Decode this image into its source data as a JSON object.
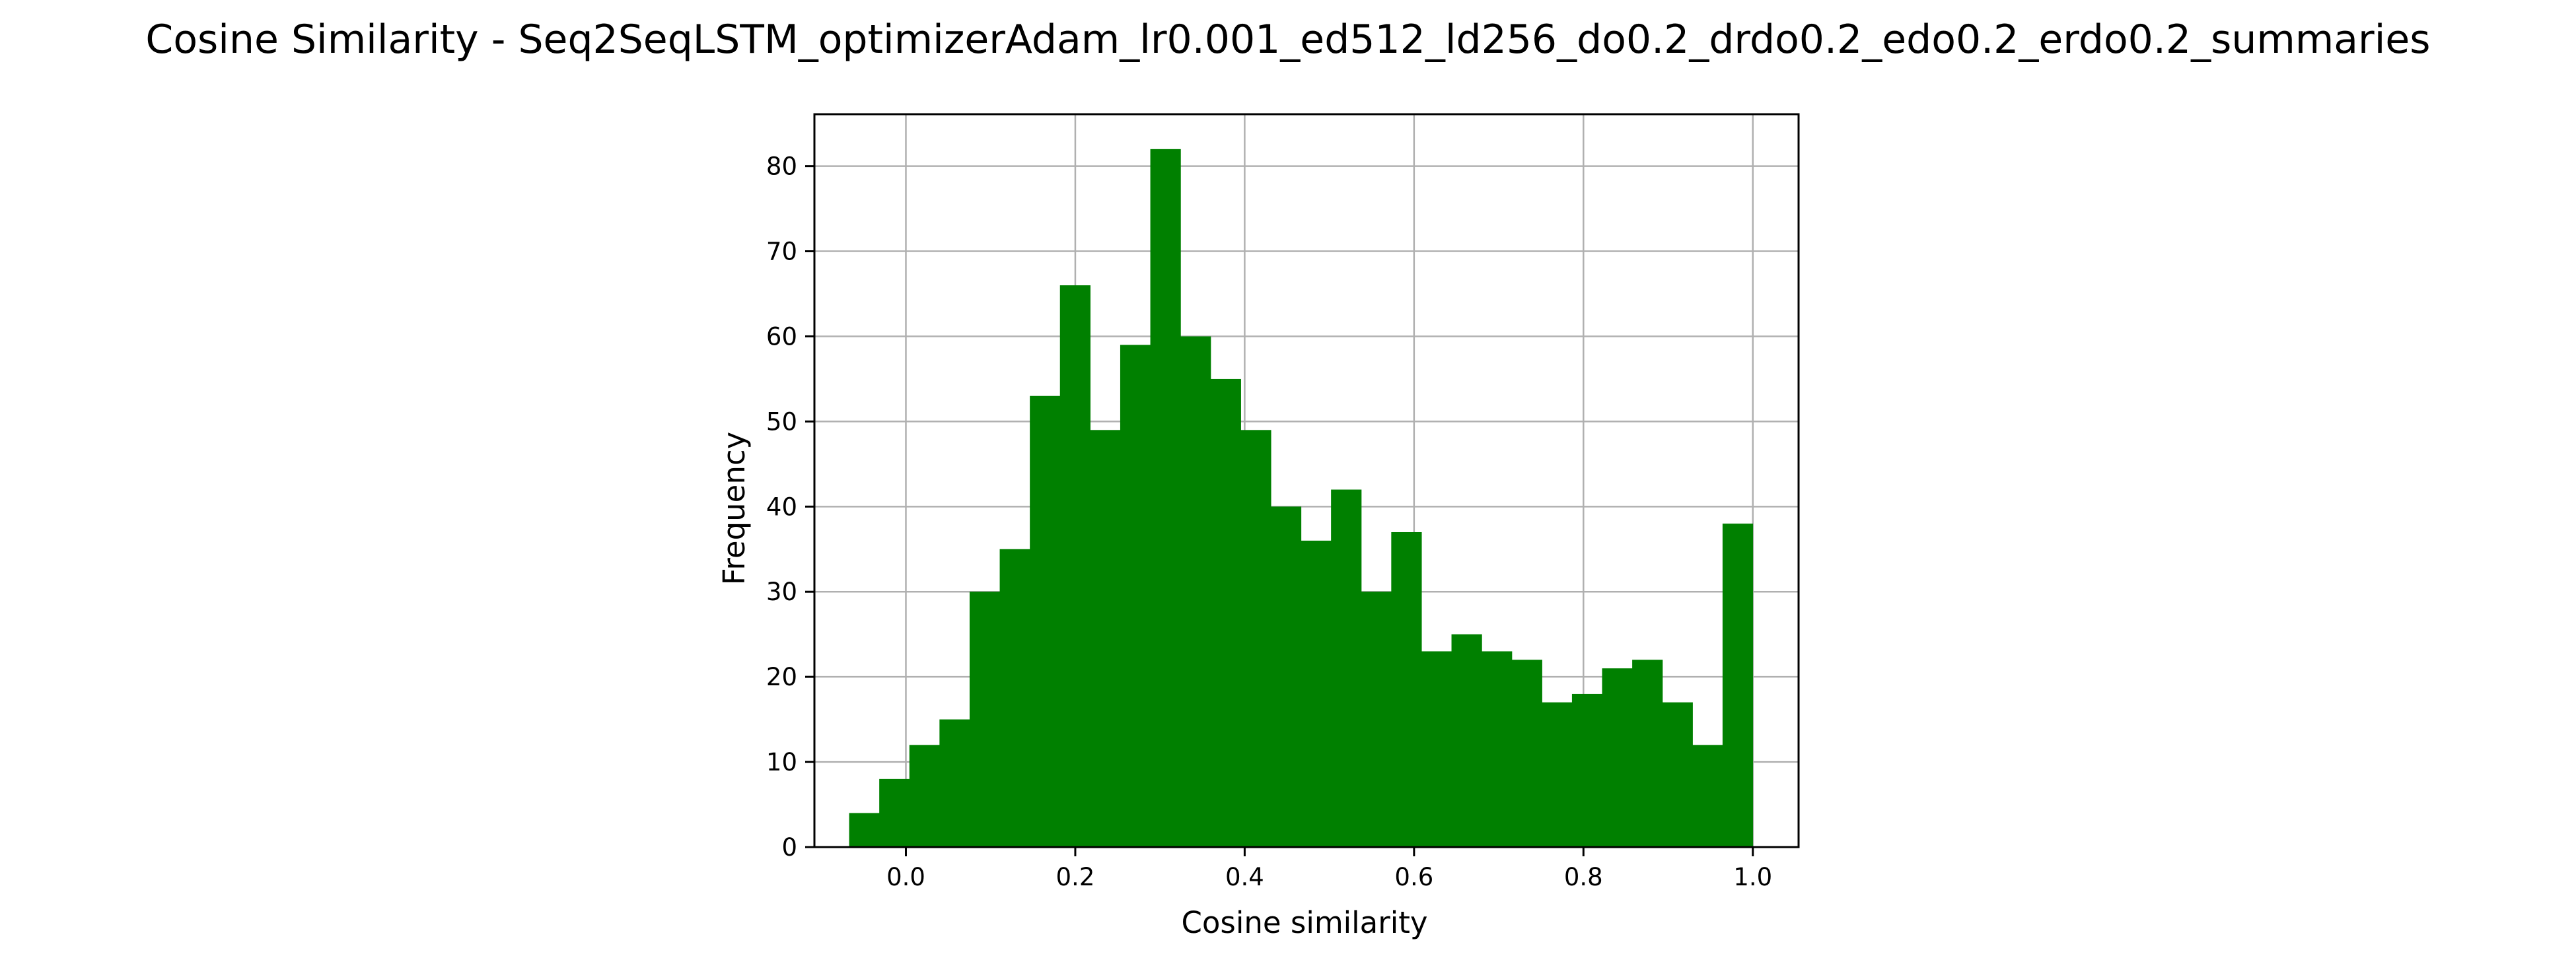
{
  "chart_data": {
    "type": "bar",
    "title": "Cosine Similarity - Seq2SeqLSTM_optimizerAdam_lr0.001_ed512_ld256_do0.2_drdo0.2_edo0.2_erdo0.2_summaries",
    "xlabel": "Cosine similarity",
    "ylabel": "Frequency",
    "bar_color": "#008000",
    "grid": true,
    "xlim": [
      -0.108,
      1.054
    ],
    "ylim": [
      0,
      86.1
    ],
    "bin_start": -0.067,
    "bin_width": 0.03556,
    "values": [
      4,
      8,
      12,
      15,
      30,
      35,
      53,
      66,
      49,
      59,
      82,
      60,
      55,
      49,
      40,
      36,
      42,
      30,
      37,
      23,
      25,
      23,
      22,
      17,
      18,
      21,
      22,
      17,
      12,
      38
    ],
    "xticks": [
      0.0,
      0.2,
      0.4,
      0.6,
      0.8,
      1.0
    ],
    "xtick_labels": [
      "0.0",
      "0.2",
      "0.4",
      "0.6",
      "0.8",
      "1.0"
    ],
    "yticks": [
      0,
      10,
      20,
      30,
      40,
      50,
      60,
      70,
      80
    ],
    "ytick_labels": [
      "0",
      "10",
      "20",
      "30",
      "40",
      "50",
      "60",
      "70",
      "80"
    ]
  }
}
